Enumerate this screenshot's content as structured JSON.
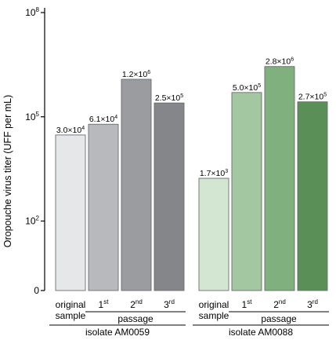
{
  "chart_data": {
    "type": "bar",
    "ylabel": "Oropouche virus titer (UFF per mL)",
    "yscale": "log10",
    "ylim": [
      1,
      100000000
    ],
    "yticks": [
      {
        "value": 1,
        "label": "0"
      },
      {
        "value": 100,
        "label": "10",
        "sup": "2"
      },
      {
        "value": 100000,
        "label": "10",
        "sup": "5"
      },
      {
        "value": 100000000,
        "label": "10",
        "sup": "8"
      }
    ],
    "grid": false,
    "groups": [
      {
        "name": "isolate AM0059",
        "passage_label": "passage",
        "bars": [
          {
            "category": "original sample",
            "cat_lines": [
              "original",
              "sample"
            ],
            "value": 30000,
            "label": "3.0×10",
            "label_exp": "4",
            "color": "#e6e7e9"
          },
          {
            "category": "1st",
            "cat_num": "1",
            "cat_sup": "st",
            "value": 61000,
            "label": "6.1×10",
            "label_exp": "4",
            "color": "#b7b9bc"
          },
          {
            "category": "2nd",
            "cat_num": "2",
            "cat_sup": "nd",
            "value": 1200000,
            "label": "1.2×10",
            "label_exp": "6",
            "color": "#9a9c9f"
          },
          {
            "category": "3rd",
            "cat_num": "3",
            "cat_sup": "rd",
            "value": 250000,
            "label": "2.5×10",
            "label_exp": "5",
            "color": "#848689"
          }
        ]
      },
      {
        "name": "isolate AM0088",
        "passage_label": "passage",
        "bars": [
          {
            "category": "original sample",
            "cat_lines": [
              "original",
              "sample"
            ],
            "value": 1700,
            "label": "1.7×10",
            "label_exp": "3",
            "color": "#d3e6d2"
          },
          {
            "category": "1st",
            "cat_num": "1",
            "cat_sup": "st",
            "value": 500000,
            "label": "5.0×10",
            "label_exp": "5",
            "color": "#a3c8a1"
          },
          {
            "category": "2nd",
            "cat_num": "2",
            "cat_sup": "nd",
            "value": 2800000,
            "label": "2.8×10",
            "label_exp": "6",
            "color": "#7fb07d"
          },
          {
            "category": "3rd",
            "cat_num": "3",
            "cat_sup": "rd",
            "value": 270000,
            "label": "2.7×10",
            "label_exp": "5",
            "color": "#5a8f58"
          }
        ]
      }
    ]
  }
}
